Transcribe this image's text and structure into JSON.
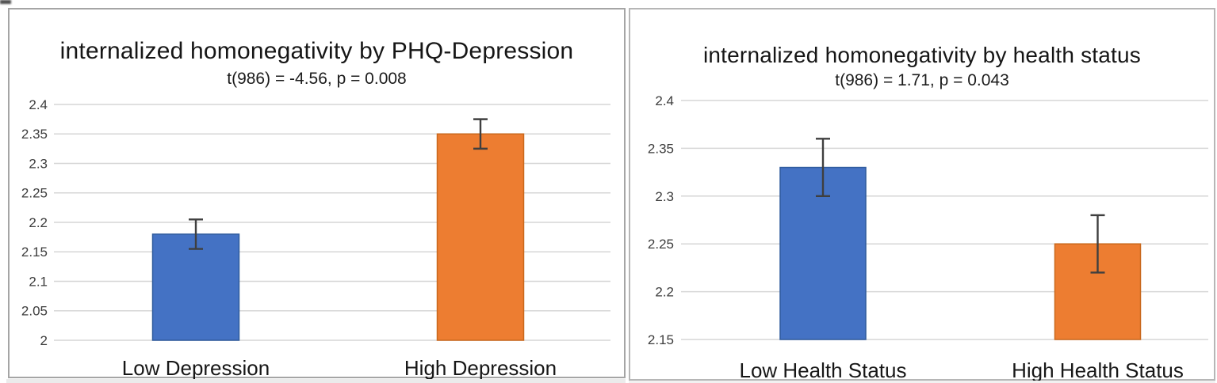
{
  "window": {
    "background": "#ffffff"
  },
  "chart_data": [
    {
      "type": "bar",
      "title": "internalized homonegativity by PHQ-Depression",
      "subtitle": "t(986) = -4.56, p = 0.008",
      "categories": [
        "Low Depression",
        "High Depression"
      ],
      "values": [
        2.18,
        2.35
      ],
      "error_plus": [
        0.025,
        0.025
      ],
      "error_minus": [
        0.025,
        0.025
      ],
      "bar_colors": [
        "#4472c4",
        "#ed7d31"
      ],
      "bar_border_colors": [
        "#2f5b9d",
        "#c9681c"
      ],
      "ylim": [
        2.0,
        2.4
      ],
      "ytick_labels": [
        "2",
        "2.05",
        "2.1",
        "2.15",
        "2.2",
        "2.25",
        "2.3",
        "2.35",
        "2.4"
      ],
      "grid": true,
      "legend_position": "none",
      "gridline_color": "#d6d6d6",
      "error_bar_color": "#3f3f3f",
      "tick_label_color": "#3d3d3d",
      "category_label_color": "#171717"
    },
    {
      "type": "bar",
      "title": "internalized homonegativity by health status",
      "subtitle": "t(986) = 1.71, p = 0.043",
      "categories": [
        "Low Health Status",
        "High Health Status"
      ],
      "values": [
        2.33,
        2.25
      ],
      "error_plus": [
        0.03,
        0.03
      ],
      "error_minus": [
        0.03,
        0.03
      ],
      "bar_colors": [
        "#4472c4",
        "#ed7d31"
      ],
      "bar_border_colors": [
        "#2f5b9d",
        "#c9681c"
      ],
      "ylim": [
        2.15,
        2.4
      ],
      "ytick_labels": [
        "2.15",
        "2.2",
        "2.25",
        "2.3",
        "2.35",
        "2.4"
      ],
      "grid": true,
      "legend_position": "none",
      "gridline_color": "#d6d6d6",
      "error_bar_color": "#3f3f3f",
      "tick_label_color": "#3d3d3d",
      "category_label_color": "#171717"
    }
  ]
}
